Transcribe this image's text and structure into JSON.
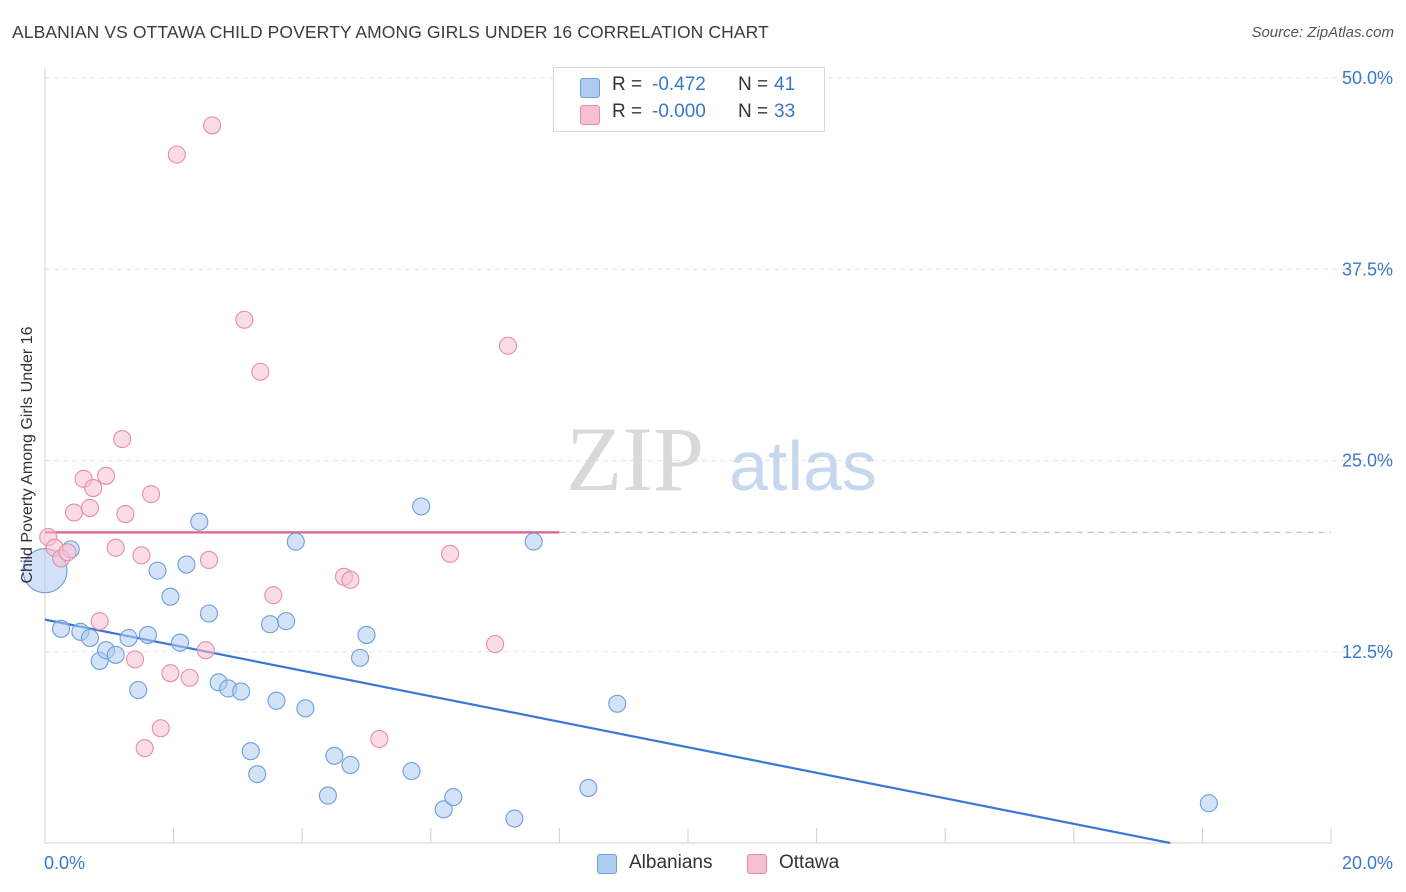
{
  "title": "ALBANIAN VS OTTAWA CHILD POVERTY AMONG GIRLS UNDER 16 CORRELATION CHART",
  "source": "Source: ZipAtlas.com",
  "watermark": {
    "zip": "ZIP",
    "atlas": "atlas"
  },
  "legend": {
    "rows": [
      {
        "r_label": "R =",
        "r_value": "-0.472",
        "n_label": "N =",
        "n_value": "41",
        "color": "#aecbf0",
        "stroke": "#6d9fd9"
      },
      {
        "r_label": "R =",
        "r_value": "-0.000",
        "n_label": "N =",
        "n_value": "33",
        "color": "#f7c0d0",
        "stroke": "#e58ea8"
      }
    ]
  },
  "bottom_legend": [
    {
      "label": "Albanians",
      "color": "#aecbf0",
      "stroke": "#6d9fd9"
    },
    {
      "label": "Ottawa",
      "color": "#f7c0d0",
      "stroke": "#e58ea8"
    }
  ],
  "chart_data": {
    "type": "scatter",
    "title": "ALBANIAN VS OTTAWA CHILD POVERTY AMONG GIRLS UNDER 16 CORRELATION CHART",
    "xlabel": "",
    "ylabel": "Child Poverty Among Girls Under 16",
    "xlim": [
      0,
      20
    ],
    "ylim": [
      0,
      50
    ],
    "x_tick_labels": [
      "0.0%",
      "20.0%"
    ],
    "y_ticks": [
      {
        "value": 12.5,
        "label": "12.5%"
      },
      {
        "value": 25.0,
        "label": "25.0%"
      },
      {
        "value": 37.5,
        "label": "37.5%"
      },
      {
        "value": 50.0,
        "label": "50.0%"
      }
    ],
    "grid": true,
    "legend_position": "top-center",
    "series": [
      {
        "name": "Albanians",
        "color": "#aecbf0",
        "stroke": "#6d9fd9",
        "trend": {
          "x": [
            0,
            17.5
          ],
          "y": [
            14.6,
            0
          ],
          "color": "#3a78d4"
        },
        "points": [
          [
            0.0,
            17.8
          ],
          [
            0.4,
            19.2
          ],
          [
            0.25,
            14.0
          ],
          [
            0.55,
            13.8
          ],
          [
            0.7,
            13.4
          ],
          [
            0.85,
            11.9
          ],
          [
            0.95,
            12.6
          ],
          [
            1.1,
            12.3
          ],
          [
            1.3,
            13.4
          ],
          [
            1.45,
            10.0
          ],
          [
            1.6,
            13.6
          ],
          [
            1.75,
            17.8
          ],
          [
            1.95,
            16.1
          ],
          [
            2.1,
            13.1
          ],
          [
            2.2,
            18.2
          ],
          [
            2.4,
            21.0
          ],
          [
            2.55,
            15.0
          ],
          [
            2.7,
            10.5
          ],
          [
            2.85,
            10.1
          ],
          [
            3.05,
            9.9
          ],
          [
            3.2,
            6.0
          ],
          [
            3.3,
            4.5
          ],
          [
            3.5,
            14.3
          ],
          [
            3.6,
            9.3
          ],
          [
            3.75,
            14.5
          ],
          [
            3.9,
            19.7
          ],
          [
            4.05,
            8.8
          ],
          [
            4.4,
            3.1
          ],
          [
            4.5,
            5.7
          ],
          [
            4.75,
            5.1
          ],
          [
            4.9,
            12.1
          ],
          [
            5.0,
            13.6
          ],
          [
            5.7,
            4.7
          ],
          [
            5.85,
            22.0
          ],
          [
            6.2,
            2.2
          ],
          [
            6.35,
            3.0
          ],
          [
            7.3,
            1.6
          ],
          [
            7.6,
            19.7
          ],
          [
            8.45,
            3.6
          ],
          [
            8.9,
            9.1
          ],
          [
            18.1,
            2.6
          ]
        ]
      },
      {
        "name": "Ottawa",
        "color": "#f7c0d0",
        "stroke": "#e58ea8",
        "trend": {
          "x": [
            0,
            8.0
          ],
          "y": [
            20.3,
            20.3
          ],
          "dashed_to": 20.0,
          "color": "#e0608a"
        },
        "points": [
          [
            0.05,
            20.0
          ],
          [
            0.15,
            19.3
          ],
          [
            0.25,
            18.6
          ],
          [
            0.35,
            19.0
          ],
          [
            0.45,
            21.6
          ],
          [
            0.6,
            23.8
          ],
          [
            0.7,
            21.9
          ],
          [
            0.75,
            23.2
          ],
          [
            0.85,
            14.5
          ],
          [
            0.95,
            24.0
          ],
          [
            1.1,
            19.3
          ],
          [
            1.2,
            26.4
          ],
          [
            1.25,
            21.5
          ],
          [
            1.4,
            12.0
          ],
          [
            1.5,
            18.8
          ],
          [
            1.55,
            6.2
          ],
          [
            1.65,
            22.8
          ],
          [
            1.8,
            7.5
          ],
          [
            1.95,
            11.1
          ],
          [
            2.05,
            45.0
          ],
          [
            2.25,
            10.8
          ],
          [
            2.5,
            12.6
          ],
          [
            2.55,
            18.5
          ],
          [
            2.6,
            46.9
          ],
          [
            3.1,
            34.2
          ],
          [
            3.35,
            30.8
          ],
          [
            3.55,
            16.2
          ],
          [
            4.65,
            17.4
          ],
          [
            4.75,
            17.2
          ],
          [
            5.2,
            6.8
          ],
          [
            6.3,
            18.9
          ],
          [
            7.0,
            13.0
          ],
          [
            7.2,
            32.5
          ]
        ]
      }
    ]
  }
}
